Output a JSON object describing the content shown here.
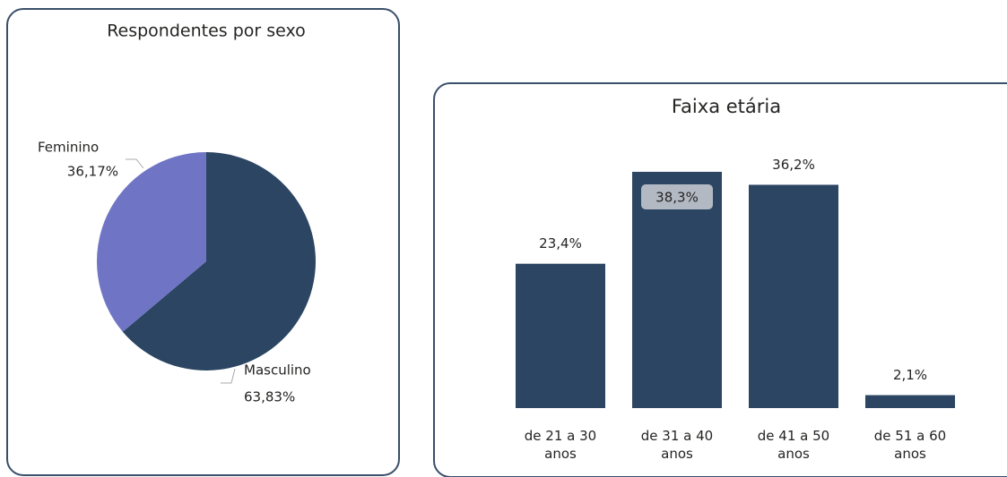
{
  "chart_data": [
    {
      "type": "pie",
      "title": "Respondentes por sexo",
      "categories": [
        "Feminino",
        "Masculino"
      ],
      "values": [
        36.17,
        63.83
      ],
      "value_labels": [
        "36,17%",
        "63,83%"
      ],
      "colors": [
        "#6f75c4",
        "#2b4563"
      ]
    },
    {
      "type": "bar",
      "title": "Faixa etária",
      "categories": [
        "de 21 a 30 anos",
        "de 31 a 40 anos",
        "de 41 a 50 anos",
        "de 51 a 60 anos"
      ],
      "values": [
        23.4,
        38.3,
        36.2,
        2.1
      ],
      "value_labels": [
        "23,4%",
        "38,3%",
        "36,2%",
        "2,1%"
      ],
      "color": "#2b4563"
    }
  ]
}
